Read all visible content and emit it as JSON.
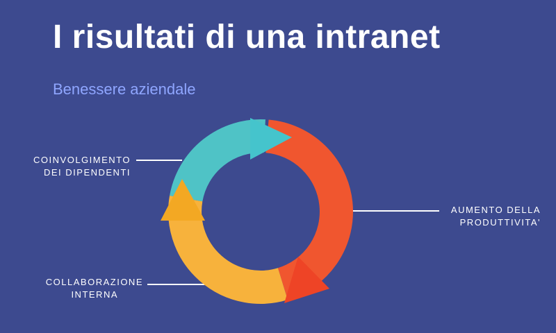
{
  "header": {
    "title": "I risultati di una intranet",
    "subtitle": "Benessere aziendale"
  },
  "cycle": {
    "segments": [
      {
        "name": "teal",
        "color": "#4fc3c6",
        "arrow_color": "#45c4cc"
      },
      {
        "name": "orange-red",
        "color": "#f0562f",
        "arrow_color": "#ee4426"
      },
      {
        "name": "yellow",
        "color": "#f7b23c",
        "arrow_color": "#f3a823"
      }
    ],
    "labels": {
      "coinvolgimento": {
        "line1": "COINVOLGIMENTO",
        "line2": "DEI DIPENDENTI"
      },
      "produttivita": {
        "line1": "AUMENTO DELLA",
        "line2": "PRODUTTIVITA'"
      },
      "collaborazione": {
        "line1": "COLLABORAZIONE",
        "line2": "INTERNA"
      }
    }
  }
}
